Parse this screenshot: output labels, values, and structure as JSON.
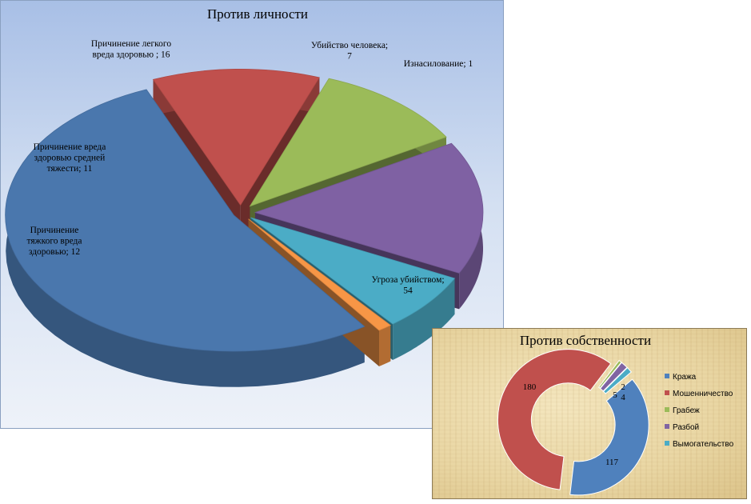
{
  "chart_data": [
    {
      "type": "pie",
      "style": "3d-exploded",
      "title": "Против личности",
      "categories": [
        "Угроза убийством",
        "Причинение тяжкого вреда здоровью",
        "Причинение вреда здоровью средней тяжести",
        "Причинение легкого вреда здоровью",
        "Убийство человека",
        "Изнасилование"
      ],
      "values": [
        54,
        12,
        11,
        16,
        7,
        1
      ],
      "colors": [
        "#4a77ad",
        "#c0504d",
        "#9bbb59",
        "#7f61a3",
        "#4bacc6",
        "#f79646"
      ],
      "labels": [
        [
          "Угроза убийством;",
          "54"
        ],
        [
          "Причинение",
          "тяжкого вреда",
          "здоровью; 12"
        ],
        [
          "Причинение вреда",
          "здоровью средней",
          "тяжести; 11"
        ],
        [
          "Причинение легкого",
          "вреда здоровью ; 16"
        ],
        [
          "Убийство человека;",
          "7"
        ],
        [
          "Изнасилование; 1"
        ]
      ]
    },
    {
      "type": "doughnut",
      "title": "Против собственности",
      "categories": [
        "Кража",
        "Мошенничество",
        "Грабеж",
        "Разбой",
        "Вымогательство"
      ],
      "values": [
        117,
        180,
        2,
        5,
        4
      ],
      "colors": [
        "#4f81bd",
        "#c0504d",
        "#9bbb59",
        "#8064a2",
        "#4bacc6"
      ],
      "legend": "right"
    }
  ]
}
